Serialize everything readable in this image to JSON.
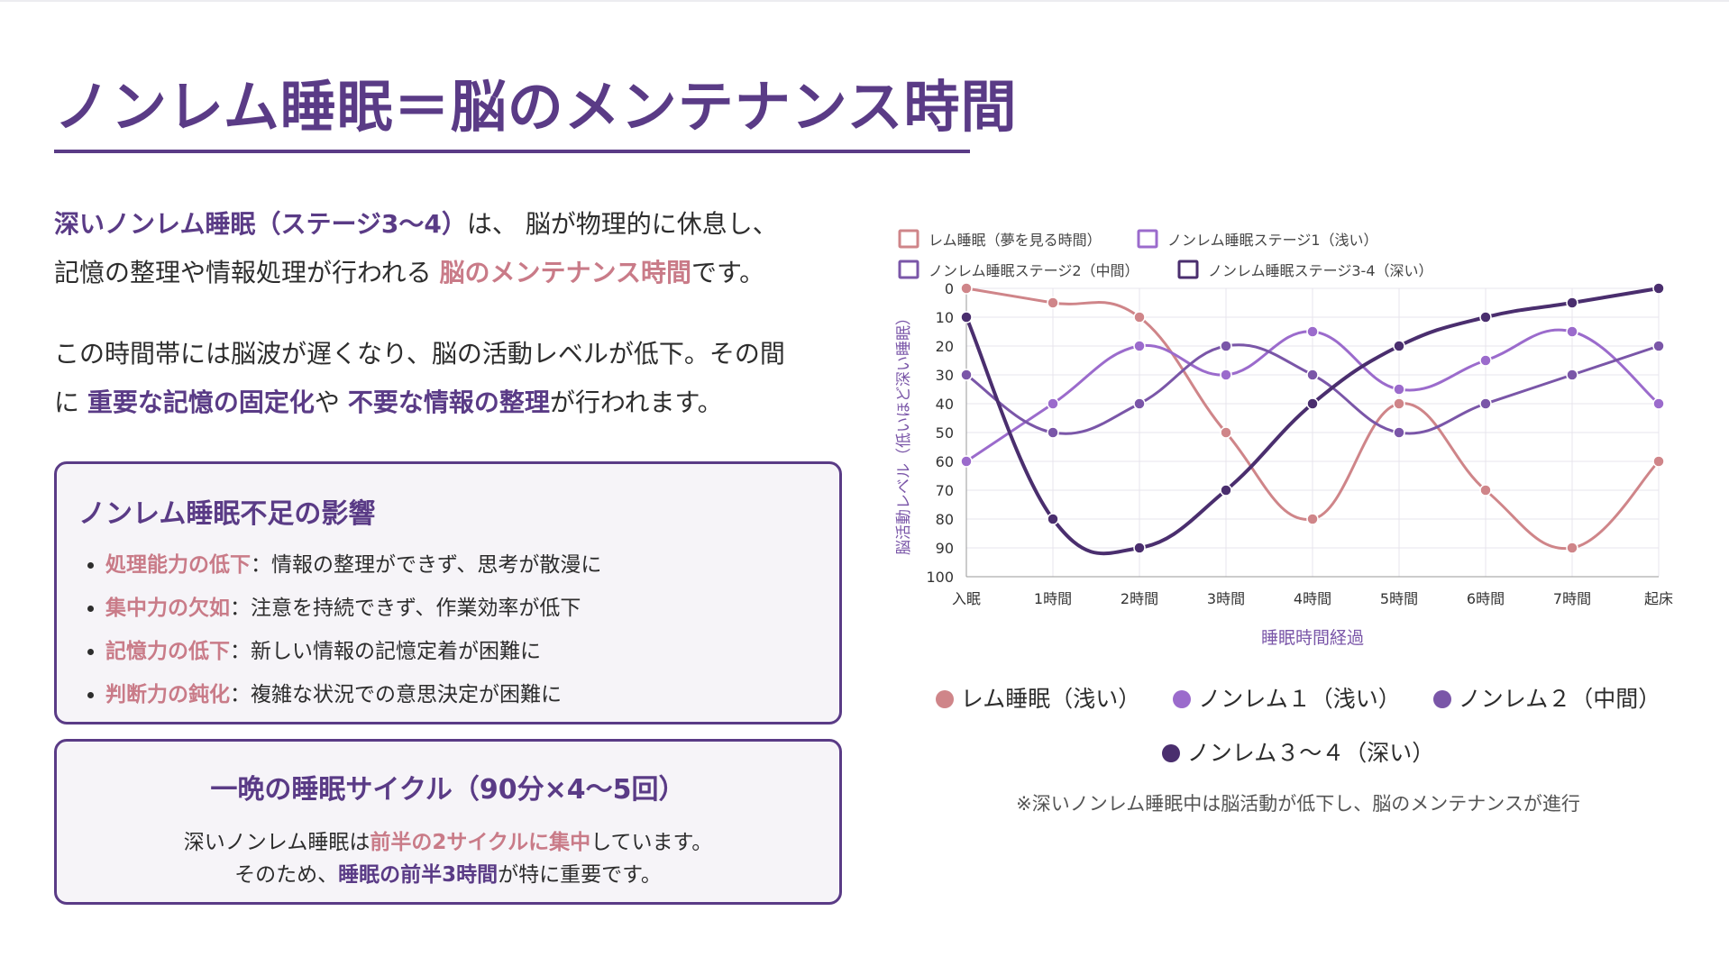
{
  "title": "ノンレム睡眠＝脳のメンテナンス時間",
  "intro": {
    "p1_em": "深いノンレム睡眠（ステージ3〜4）",
    "p1_a": "は、 脳が物理的に休息し、",
    "p1_b": "記憶の整理や情報処理が行われる ",
    "p1_em2": "脳のメンテナンス時間",
    "p1_c": "です。",
    "p2_a": "この時間帯には脳波が遅くなり、脳の活動レベルが低下。その間",
    "p2_b": "に ",
    "p2_em1": "重要な記憶の固定化",
    "p2_c": "や ",
    "p2_em2": "不要な情報の整理",
    "p2_d": "が行われます。"
  },
  "impact_card": {
    "title": "ノンレム睡眠不足の影響",
    "items": [
      {
        "term": "処理能力の低下",
        "desc": "：情報の整理ができず、思考が散漫に"
      },
      {
        "term": "集中力の欠如",
        "desc": "：注意を持続できず、作業効率が低下"
      },
      {
        "term": "記憶力の低下",
        "desc": "：新しい情報の記憶定着が困難に"
      },
      {
        "term": "判断力の鈍化",
        "desc": "：複雑な状況での意思決定が困難に"
      }
    ]
  },
  "cycle_card": {
    "title": "一晩の睡眠サイクル（90分×4〜5回）",
    "l1_a": "深いノンレム睡眠は",
    "l1_em": "前半の2サイクルに集中",
    "l1_b": "しています。",
    "l2_a": "そのため、",
    "l2_em": "睡眠の前半3時間",
    "l2_b": "が特に重要です。"
  },
  "colors": {
    "accent": "#5a3b86",
    "pink": "#c97b88",
    "rem": "#cf8589",
    "nrem1": "#9b6bcc",
    "nrem2": "#7a56a8",
    "nrem34": "#4a2e6e"
  },
  "chart_data": {
    "type": "line",
    "categories": [
      "入眠",
      "1時間",
      "2時間",
      "3時間",
      "4時間",
      "5時間",
      "6時間",
      "7時間",
      "起床"
    ],
    "xlabel": "睡眠時間経過",
    "ylabel": "脳活動レベル（低いほど深い睡眠）",
    "ylim": [
      0,
      100
    ],
    "y_reversed": true,
    "yticks": [
      0,
      10,
      20,
      30,
      40,
      50,
      60,
      70,
      80,
      90,
      100
    ],
    "grid": true,
    "legend_position": "top-left",
    "series": [
      {
        "name": "レム睡眠（夢を見る時間）",
        "color": "#cf8589",
        "values": [
          0,
          5,
          10,
          50,
          80,
          40,
          70,
          90,
          60
        ]
      },
      {
        "name": "ノンレム睡眠ステージ1（浅い）",
        "color": "#9b6bcc",
        "values": [
          60,
          40,
          20,
          30,
          15,
          35,
          25,
          15,
          40
        ]
      },
      {
        "name": "ノンレム睡眠ステージ2（中間）",
        "color": "#7a56a8",
        "values": [
          30,
          50,
          40,
          20,
          30,
          50,
          40,
          30,
          20
        ]
      },
      {
        "name": "ノンレム睡眠ステージ3-4（深い）",
        "color": "#4a2e6e",
        "values": [
          10,
          80,
          90,
          70,
          40,
          20,
          10,
          5,
          0
        ]
      }
    ]
  },
  "legend_bottom": [
    {
      "label": "レム睡眠（浅い）",
      "color": "#cf8589"
    },
    {
      "label": "ノンレム１（浅い）",
      "color": "#9b6bcc"
    },
    {
      "label": "ノンレム２（中間）",
      "color": "#7a56a8"
    },
    {
      "label": "ノンレム３〜４（深い）",
      "color": "#4a2e6e"
    }
  ],
  "note": "※深いノンレム睡眠中は脳活動が低下し、脳のメンテナンスが進行"
}
